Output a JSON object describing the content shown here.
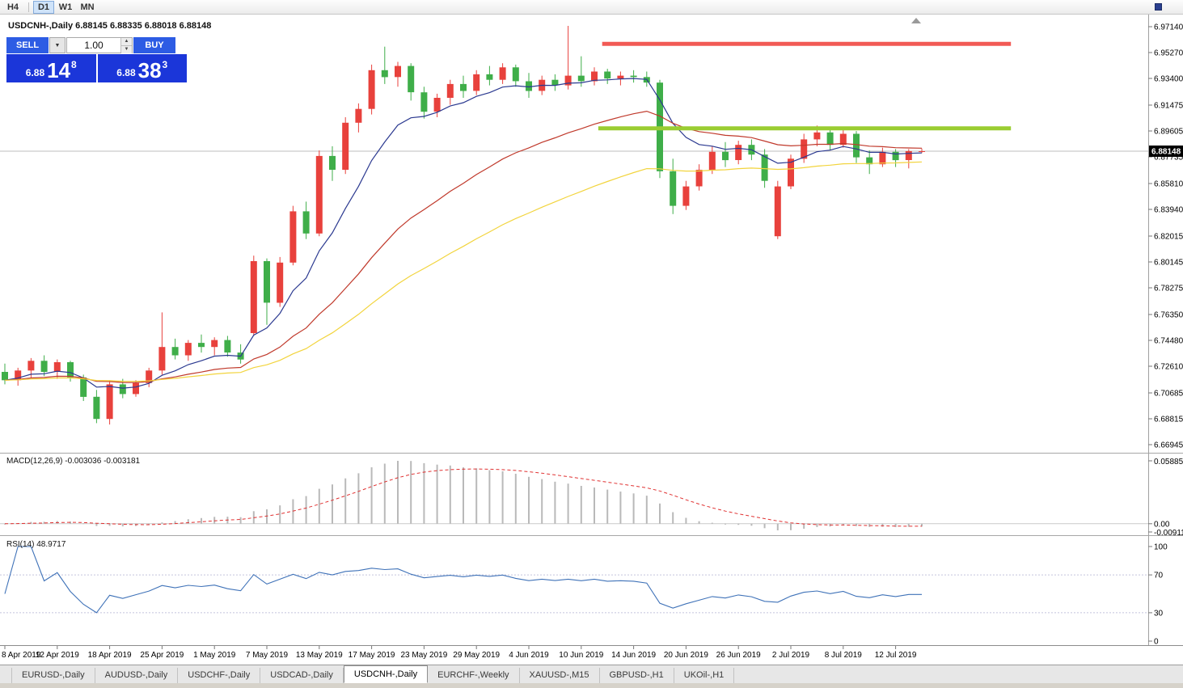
{
  "toolbar": {
    "timeframes": [
      {
        "label": "H4",
        "active": false
      },
      {
        "label": "D1",
        "active": true
      },
      {
        "label": "W1",
        "active": false
      },
      {
        "label": "MN",
        "active": false
      }
    ]
  },
  "chart_title": "USDCNH-,Daily 6.88145 6.88335 6.88018 6.88148",
  "trade_panel": {
    "sell_label": "SELL",
    "buy_label": "BUY",
    "volume": "1.00",
    "sell_price_small": "6.88",
    "sell_price_big": "14",
    "sell_price_sup": "8",
    "buy_price_small": "6.88",
    "buy_price_big": "38",
    "buy_price_sup": "3",
    "button_color": "#2d5ce4",
    "quote_box_color": "#1b36d9"
  },
  "indicators": {
    "macd_label": "MACD(12,26,9) -0.003036 -0.003181",
    "rsi_label": "RSI(14) 48.9717"
  },
  "tabs": [
    {
      "label": "EURUSD-,Daily",
      "active": false
    },
    {
      "label": "AUDUSD-,Daily",
      "active": false
    },
    {
      "label": "USDCHF-,Daily",
      "active": false
    },
    {
      "label": "USDCAD-,Daily",
      "active": false
    },
    {
      "label": "USDCNH-,Daily",
      "active": true
    },
    {
      "label": "EURCHF-,Weekly",
      "active": false
    },
    {
      "label": "XAUUSD-,M15",
      "active": false
    },
    {
      "label": "GBPUSD-,H1",
      "active": false
    },
    {
      "label": "UKOil-,H1",
      "active": false
    }
  ],
  "chart_data": {
    "type": "candlestick",
    "symbol": "USDCNH-",
    "timeframe": "Daily",
    "up_color": "#e8413c",
    "down_color": "#3fae49",
    "ohlc_fields": [
      "date",
      "open",
      "high",
      "low",
      "close"
    ],
    "candles": [
      [
        "8 Apr",
        6.722,
        6.728,
        6.713,
        6.716
      ],
      [
        "9 Apr",
        6.716,
        6.725,
        6.712,
        6.723
      ],
      [
        "10 Apr",
        6.723,
        6.732,
        6.718,
        6.73
      ],
      [
        "11 Apr",
        6.73,
        6.734,
        6.719,
        6.722
      ],
      [
        "12 Apr",
        6.722,
        6.731,
        6.717,
        6.729
      ],
      [
        "15 Apr",
        6.729,
        6.73,
        6.715,
        6.718
      ],
      [
        "16 Apr",
        6.718,
        6.72,
        6.701,
        6.704
      ],
      [
        "17 Apr",
        6.704,
        6.709,
        6.685,
        6.688
      ],
      [
        "18 Apr",
        6.688,
        6.716,
        6.684,
        6.713
      ],
      [
        "22 Apr",
        6.713,
        6.717,
        6.703,
        6.706
      ],
      [
        "23 Apr",
        6.706,
        6.716,
        6.704,
        6.714
      ],
      [
        "24 Apr",
        6.714,
        6.725,
        6.711,
        6.723
      ],
      [
        "25 Apr",
        6.723,
        6.765,
        6.72,
        6.74
      ],
      [
        "26 Apr",
        6.74,
        6.746,
        6.731,
        6.734
      ],
      [
        "29 Apr",
        6.734,
        6.745,
        6.73,
        6.743
      ],
      [
        "30 Apr",
        6.743,
        6.749,
        6.736,
        6.74
      ],
      [
        "1 May",
        6.74,
        6.747,
        6.734,
        6.745
      ],
      [
        "2 May",
        6.745,
        6.748,
        6.733,
        6.736
      ],
      [
        "3 May",
        6.736,
        6.742,
        6.728,
        6.731
      ],
      [
        "6 May",
        6.75,
        6.806,
        6.748,
        6.802
      ],
      [
        "7 May",
        6.802,
        6.804,
        6.756,
        6.772
      ],
      [
        "8 May",
        6.772,
        6.805,
        6.769,
        6.801
      ],
      [
        "9 May",
        6.801,
        6.842,
        6.799,
        6.838
      ],
      [
        "10 May",
        6.838,
        6.845,
        6.818,
        6.822
      ],
      [
        "13 May",
        6.822,
        6.882,
        6.82,
        6.878
      ],
      [
        "14 May",
        6.878,
        6.885,
        6.86,
        6.868
      ],
      [
        "15 May",
        6.868,
        6.906,
        6.865,
        6.902
      ],
      [
        "16 May",
        6.902,
        6.916,
        6.895,
        6.912
      ],
      [
        "17 May",
        6.912,
        6.944,
        6.908,
        6.94
      ],
      [
        "20 May",
        6.94,
        6.957,
        6.93,
        6.935
      ],
      [
        "21 May",
        6.935,
        6.946,
        6.928,
        6.943
      ],
      [
        "22 May",
        6.943,
        6.945,
        6.918,
        6.924
      ],
      [
        "23 May",
        6.924,
        6.928,
        6.905,
        6.91
      ],
      [
        "24 May",
        6.91,
        6.923,
        6.906,
        6.92
      ],
      [
        "27 May",
        6.92,
        6.933,
        6.915,
        6.93
      ],
      [
        "28 May",
        6.93,
        6.936,
        6.92,
        6.925
      ],
      [
        "29 May",
        6.925,
        6.94,
        6.922,
        6.937
      ],
      [
        "30 May",
        6.937,
        6.943,
        6.929,
        6.933
      ],
      [
        "31 May",
        6.933,
        6.945,
        6.93,
        6.942
      ],
      [
        "3 Jun",
        6.942,
        6.944,
        6.928,
        6.932
      ],
      [
        "4 Jun",
        6.932,
        6.938,
        6.92,
        6.925
      ],
      [
        "5 Jun",
        6.925,
        6.936,
        6.922,
        6.933
      ],
      [
        "6 Jun",
        6.933,
        6.937,
        6.925,
        6.929
      ],
      [
        "7 Jun",
        6.929,
        6.972,
        6.926,
        6.936
      ],
      [
        "10 Jun",
        6.936,
        6.95,
        6.928,
        6.932
      ],
      [
        "11 Jun",
        6.932,
        6.942,
        6.929,
        6.939
      ],
      [
        "12 Jun",
        6.939,
        6.941,
        6.93,
        6.934
      ],
      [
        "13 Jun",
        6.934,
        6.939,
        6.929,
        6.936
      ],
      [
        "14 Jun",
        6.936,
        6.94,
        6.931,
        6.935
      ],
      [
        "17 Jun",
        6.935,
        6.939,
        6.928,
        6.931
      ],
      [
        "18 Jun",
        6.931,
        6.933,
        6.862,
        6.867
      ],
      [
        "19 Jun",
        6.867,
        6.876,
        6.836,
        6.842
      ],
      [
        "20 Jun",
        6.842,
        6.86,
        6.839,
        6.856
      ],
      [
        "21 Jun",
        6.856,
        6.872,
        6.853,
        6.868
      ],
      [
        "24 Jun",
        6.868,
        6.885,
        6.865,
        6.881
      ],
      [
        "25 Jun",
        6.881,
        6.888,
        6.87,
        6.875
      ],
      [
        "26 Jun",
        6.875,
        6.889,
        6.872,
        6.886
      ],
      [
        "27 Jun",
        6.886,
        6.89,
        6.875,
        6.879
      ],
      [
        "28 Jun",
        6.879,
        6.883,
        6.855,
        6.86
      ],
      [
        "1 Jul",
        6.82,
        6.86,
        6.818,
        6.856
      ],
      [
        "2 Jul",
        6.856,
        6.879,
        6.854,
        6.876
      ],
      [
        "3 Jul",
        6.876,
        6.894,
        6.873,
        6.89
      ],
      [
        "4 Jul",
        6.89,
        6.9,
        6.885,
        6.895
      ],
      [
        "5 Jul",
        6.895,
        6.899,
        6.882,
        6.886
      ],
      [
        "8 Jul",
        6.886,
        6.898,
        6.884,
        6.894
      ],
      [
        "9 Jul",
        6.894,
        6.896,
        6.873,
        6.877
      ],
      [
        "10 Jul",
        6.877,
        6.882,
        6.865,
        6.872
      ],
      [
        "11 Jul",
        6.872,
        6.884,
        6.87,
        6.881
      ],
      [
        "12 Jul",
        6.881,
        6.883,
        6.87,
        6.875
      ],
      [
        "15 Jul",
        6.875,
        6.883,
        6.869,
        6.8815
      ],
      [
        "16 Jul",
        6.88145,
        6.88335,
        6.88018,
        6.88148
      ]
    ],
    "moving_averages": [
      {
        "period": 8,
        "type": "EMA",
        "color": "#2b3990"
      },
      {
        "period": 24,
        "type": "EMA",
        "color": "#c0392b"
      },
      {
        "period": 45,
        "type": "EMA",
        "color": "#f2d43d"
      }
    ],
    "annotations": [
      {
        "name": "resistance-line-red",
        "type": "hline",
        "price": 6.959,
        "x1_index": 45.6,
        "x2_index": 76.8,
        "color": "#f25a55",
        "width": 5
      },
      {
        "name": "support-line-olive",
        "type": "hline",
        "price": 6.898,
        "x1_index": 45.3,
        "x2_index": 76.8,
        "color": "#9acd32",
        "width": 5
      }
    ],
    "price_axis": {
      "bid": "6.88148",
      "bid_value": 6.88148,
      "labels": [
        "6.97140",
        "6.95270",
        "6.93400",
        "6.91475",
        "6.89605",
        "6.87735",
        "6.85810",
        "6.83940",
        "6.82015",
        "6.80145",
        "6.78275",
        "6.76350",
        "6.74480",
        "6.72610",
        "6.70685",
        "6.68815",
        "6.66945"
      ]
    },
    "macd": {
      "params": [
        12,
        26,
        9
      ],
      "value": -0.003036,
      "signal": -0.003181,
      "axis_labels": [
        "0.058851",
        "0.00",
        "-0.009116"
      ],
      "histogram_color": "#b9b9b9",
      "signal_color": "#e03131"
    },
    "rsi": {
      "period": 14,
      "value": 48.9717,
      "levels": [
        100,
        70,
        30,
        0
      ],
      "line_color": "#3f72b8"
    },
    "x_axis": {
      "label_every": 4,
      "labels": [
        "8 Apr 2019",
        "12 Apr 2019",
        "18 Apr 2019",
        "25 Apr 2019",
        "1 May 2019",
        "7 May 2019",
        "13 May 2019",
        "17 May 2019",
        "23 May 2019",
        "29 May 2019",
        "4 Jun 2019",
        "10 Jun 2019",
        "14 Jun 2019",
        "20 Jun 2019",
        "26 Jun 2019",
        "2 Jul 2019",
        "8 Jul 2019",
        "12 Jul 2019"
      ]
    }
  }
}
